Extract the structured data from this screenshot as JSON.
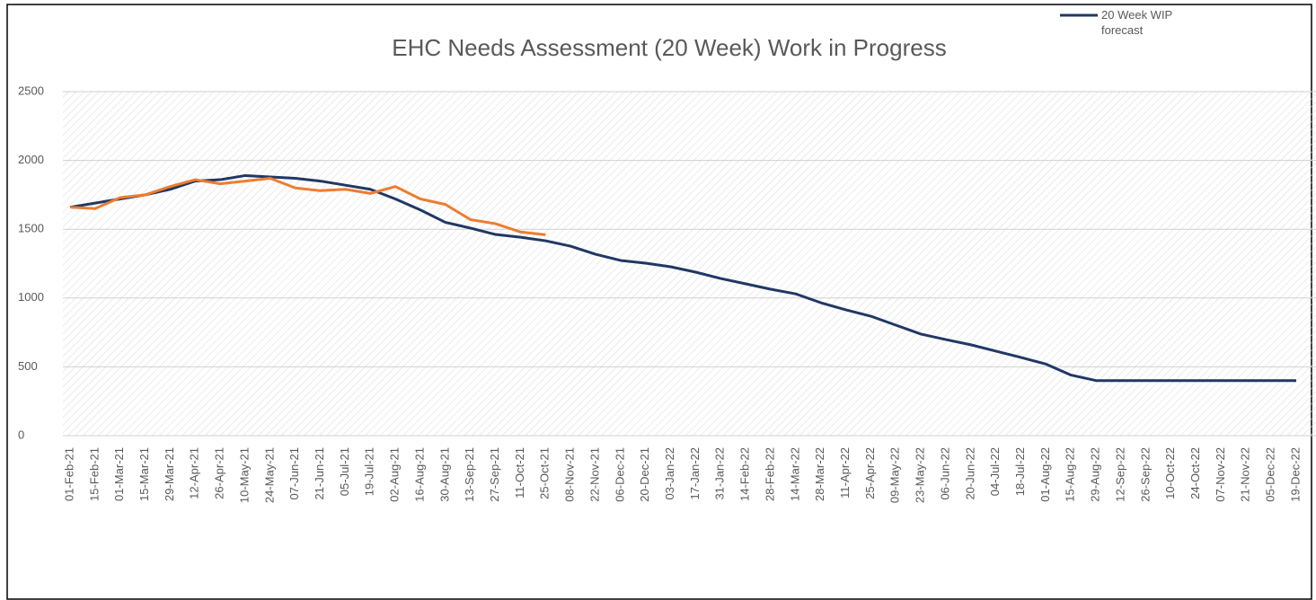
{
  "chart_data": {
    "type": "line",
    "title": "EHC Needs Assessment (20 Week) Work in Progress",
    "categories": [
      "01-Feb-21",
      "15-Feb-21",
      "01-Mar-21",
      "15-Mar-21",
      "29-Mar-21",
      "12-Apr-21",
      "26-Apr-21",
      "10-May-21",
      "24-May-21",
      "07-Jun-21",
      "21-Jun-21",
      "05-Jul-21",
      "19-Jul-21",
      "02-Aug-21",
      "16-Aug-21",
      "30-Aug-21",
      "13-Sep-21",
      "27-Sep-21",
      "11-Oct-21",
      "25-Oct-21",
      "08-Nov-21",
      "22-Nov-21",
      "06-Dec-21",
      "20-Dec-21",
      "03-Jan-22",
      "17-Jan-22",
      "31-Jan-22",
      "14-Feb-22",
      "28-Feb-22",
      "14-Mar-22",
      "28-Mar-22",
      "11-Apr-22",
      "25-Apr-22",
      "09-May-22",
      "23-May-22",
      "06-Jun-22",
      "20-Jun-22",
      "04-Jul-22",
      "18-Jul-22",
      "01-Aug-22",
      "15-Aug-22",
      "29-Aug-22",
      "12-Sep-22",
      "26-Sep-22",
      "10-Oct-22",
      "24-Oct-22",
      "07-Nov-22",
      "21-Nov-22",
      "05-Dec-22",
      "19-Dec-22"
    ],
    "series": [
      {
        "name": "20 Week WIP forecast",
        "color": "#203864",
        "values": [
          1660,
          1690,
          1720,
          1750,
          1790,
          1850,
          1860,
          1890,
          1880,
          1870,
          1850,
          1820,
          1790,
          1720,
          1640,
          1550,
          1508,
          1462,
          1442,
          1416,
          1377,
          1318,
          1273,
          1253,
          1227,
          1188,
          1142,
          1103,
          1064,
          1030,
          966,
          914,
          868,
          803,
          738,
          698,
          660,
          614,
          568,
          520,
          440,
          400,
          400,
          400,
          400,
          400,
          400,
          400,
          400,
          400
        ]
      },
      {
        "color": "#ed7d31",
        "values": [
          1660,
          1650,
          1730,
          1750,
          1810,
          1860,
          1830,
          1850,
          1870,
          1800,
          1780,
          1790,
          1760,
          1810,
          1720,
          1680,
          1570,
          1540,
          1480,
          1460,
          null,
          null,
          null,
          null,
          null,
          null,
          null,
          null,
          null,
          null,
          null,
          null,
          null,
          null,
          null,
          null,
          null,
          null,
          null,
          null,
          null,
          null,
          null,
          null,
          null,
          null,
          null,
          null,
          null,
          null
        ]
      }
    ],
    "ylim": [
      0,
      2500
    ],
    "yticks": [
      0,
      500,
      1000,
      1500,
      2000,
      2500
    ],
    "grid": true
  }
}
